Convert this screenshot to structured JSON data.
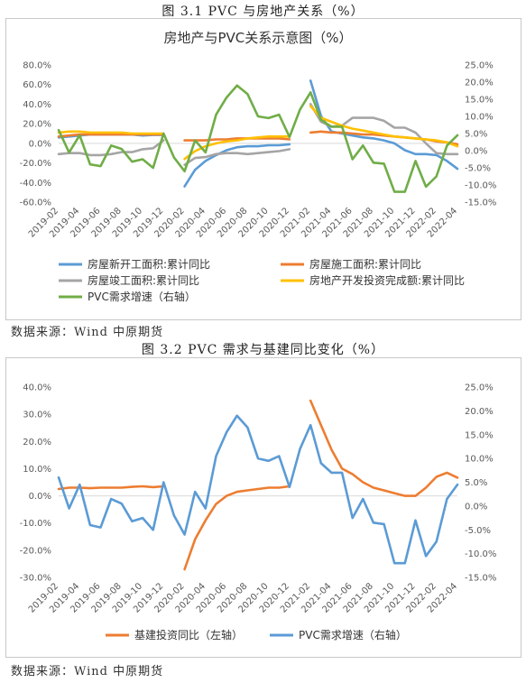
{
  "figure1": {
    "caption": "图 3.1 PVC 与房地产关系（%）",
    "source": "数据来源：Wind 中原期货",
    "chart_data": {
      "type": "line",
      "title": "房地产与PVC关系示意图（%）",
      "x": [
        "2019-02",
        "2019-03",
        "2019-04",
        "2019-05",
        "2019-06",
        "2019-07",
        "2019-08",
        "2019-09",
        "2019-10",
        "2019-11",
        "2019-12",
        "2020-01",
        "2020-02",
        "2020-03",
        "2020-04",
        "2020-05",
        "2020-06",
        "2020-07",
        "2020-08",
        "2020-09",
        "2020-10",
        "2020-11",
        "2020-12",
        "2021-01",
        "2021-02",
        "2021-03",
        "2021-04",
        "2021-05",
        "2021-06",
        "2021-07",
        "2021-08",
        "2021-09",
        "2021-10",
        "2021-11",
        "2021-12",
        "2022-01",
        "2022-02",
        "2022-03",
        "2022-04"
      ],
      "x_tick_labels": [
        "2019-02",
        "2019-04",
        "2019-06",
        "2019-08",
        "2019-10",
        "2019-12",
        "2020-02",
        "2020-04",
        "2020-06",
        "2020-08",
        "2020-10",
        "2020-12",
        "2021-02",
        "2021-04",
        "2021-06",
        "2021-08",
        "2021-10",
        "2021-12",
        "2022-02",
        "2022-04"
      ],
      "y_left": {
        "min": -60,
        "max": 80,
        "step": 20,
        "ticks": [
          "-60.0%",
          "-40.0%",
          "-20.0%",
          "0.0%",
          "20.0%",
          "40.0%",
          "60.0%",
          "80.0%"
        ]
      },
      "y_right": {
        "min": -15,
        "max": 25,
        "step": 5,
        "ticks": [
          "-15.0%",
          "-10.0%",
          "-5.0%",
          "0.0%",
          "5.0%",
          "10.0%",
          "15.0%",
          "20.0%",
          "25.0%"
        ]
      },
      "series": [
        {
          "name": "房屋新开工面积:累计同比",
          "axis": "left",
          "color": "#5b9bd5",
          "values": [
            6,
            7,
            8,
            9,
            9,
            9,
            9,
            9,
            8,
            8.5,
            8.5,
            null,
            -44,
            -27,
            -18,
            -12,
            -7,
            -4,
            -3,
            -3,
            -2,
            -2,
            -1,
            null,
            64,
            28,
            12,
            10,
            8,
            6,
            5,
            3,
            0,
            -7,
            -11,
            -11,
            -12,
            -18,
            -26
          ]
        },
        {
          "name": "房屋施工面积:累计同比",
          "axis": "left",
          "color": "#ed7d31",
          "values": [
            7,
            8,
            9,
            9,
            9,
            9,
            9,
            9,
            9,
            9,
            9,
            null,
            3,
            3,
            3,
            4,
            4,
            5,
            5,
            5,
            5,
            5,
            4,
            null,
            11,
            12,
            11,
            11,
            10,
            9,
            9,
            8,
            7,
            6,
            5,
            4,
            2,
            1,
            -1
          ]
        },
        {
          "name": "房屋竣工面积:累计同比",
          "axis": "left",
          "color": "#a5a5a5",
          "values": [
            -11,
            -10,
            -10,
            -12,
            -12,
            -11,
            -9,
            -9,
            -6,
            -5,
            3,
            null,
            -22,
            -15,
            -14,
            -11,
            -10,
            -10,
            -11,
            -10,
            -9,
            -8,
            -6,
            null,
            40,
            22,
            17,
            18,
            26,
            26,
            26,
            23,
            16,
            16,
            11,
            0,
            -10,
            -11,
            -11
          ]
        },
        {
          "name": "房地产开发投资完成额:累计同比",
          "axis": "left",
          "color": "#ffc000",
          "values": [
            11,
            12,
            12,
            11,
            11,
            11,
            11,
            10,
            10,
            10,
            10,
            null,
            -16,
            -8,
            -3,
            0,
            2,
            3,
            5,
            6,
            7,
            7,
            7,
            null,
            38,
            26,
            22,
            18,
            15,
            13,
            11,
            9,
            7,
            6,
            5,
            4,
            3,
            1,
            -3
          ]
        },
        {
          "name": "PVC需求增速（右轴）",
          "axis": "right",
          "color": "#70ad47",
          "values": [
            6,
            -0.5,
            4.5,
            -4,
            -4.5,
            1.5,
            0.5,
            -3.2,
            -2.5,
            -5,
            5,
            -2,
            -6,
            3,
            -0.5,
            10.5,
            15.5,
            19,
            16.5,
            10,
            9.5,
            10.5,
            4,
            12,
            17,
            9,
            7,
            7,
            -2.5,
            1.5,
            -3.5,
            -3.8,
            -12,
            -12,
            -3,
            -10.5,
            -7.5,
            1.5,
            4.5
          ]
        }
      ],
      "legend_position": "bottom"
    }
  },
  "figure2": {
    "caption": "图 3.2 PVC 需求与基建同比变化（%）",
    "source": "数据来源：Wind 中原期货",
    "chart_data": {
      "type": "line",
      "title": "",
      "x": [
        "2019-02",
        "2019-03",
        "2019-04",
        "2019-05",
        "2019-06",
        "2019-07",
        "2019-08",
        "2019-09",
        "2019-10",
        "2019-11",
        "2019-12",
        "2020-01",
        "2020-02",
        "2020-03",
        "2020-04",
        "2020-05",
        "2020-06",
        "2020-07",
        "2020-08",
        "2020-09",
        "2020-10",
        "2020-11",
        "2020-12",
        "2021-01",
        "2021-02",
        "2021-03",
        "2021-04",
        "2021-05",
        "2021-06",
        "2021-07",
        "2021-08",
        "2021-09",
        "2021-10",
        "2021-11",
        "2021-12",
        "2022-01",
        "2022-02",
        "2022-03",
        "2022-04"
      ],
      "x_tick_labels": [
        "2019-02",
        "2019-04",
        "2019-06",
        "2019-08",
        "2019-10",
        "2019-12",
        "2020-02",
        "2020-04",
        "2020-06",
        "2020-08",
        "2020-10",
        "2020-12",
        "2021-02",
        "2021-04",
        "2021-06",
        "2021-08",
        "2021-10",
        "2021-12",
        "2022-02",
        "2022-04"
      ],
      "y_left": {
        "min": -30,
        "max": 40,
        "step": 10,
        "ticks": [
          "-30.0%",
          "-20.0%",
          "-10.0%",
          "0.0%",
          "10.0%",
          "20.0%",
          "30.0%",
          "40.0%"
        ]
      },
      "y_right": {
        "min": -15,
        "max": 25,
        "step": 5,
        "ticks": [
          "-15.0%",
          "-10.0%",
          "-5.0%",
          "0.0%",
          "5.0%",
          "10.0%",
          "15.0%",
          "20.0%",
          "25.0%"
        ]
      },
      "series": [
        {
          "name": "基建投资同比（左轴）",
          "axis": "left",
          "color": "#ed7d31",
          "values": [
            2.5,
            3,
            3,
            2.8,
            3,
            3,
            3,
            3.3,
            3.5,
            3.2,
            3.5,
            null,
            -27,
            -16,
            -9,
            -3,
            0,
            1.5,
            2,
            2.5,
            3,
            3,
            3.5,
            null,
            35,
            26,
            17,
            10,
            8,
            5,
            3,
            2,
            1,
            0,
            0,
            3,
            7,
            8.5,
            6.7
          ]
        },
        {
          "name": "PVC需求增速（右轴）",
          "axis": "right",
          "color": "#5b9bd5",
          "values": [
            6,
            -0.5,
            4.5,
            -4,
            -4.5,
            1.5,
            0.5,
            -3.2,
            -2.5,
            -5,
            5,
            -2,
            -6,
            3,
            -0.5,
            10.5,
            15.5,
            19,
            16.5,
            10,
            9.5,
            10.5,
            4,
            12,
            17,
            9,
            7,
            7,
            -2.5,
            1.5,
            -3.5,
            -3.8,
            -12,
            -12,
            -3,
            -10.5,
            -7.5,
            1.5,
            4.5
          ]
        }
      ],
      "legend_position": "bottom"
    }
  }
}
